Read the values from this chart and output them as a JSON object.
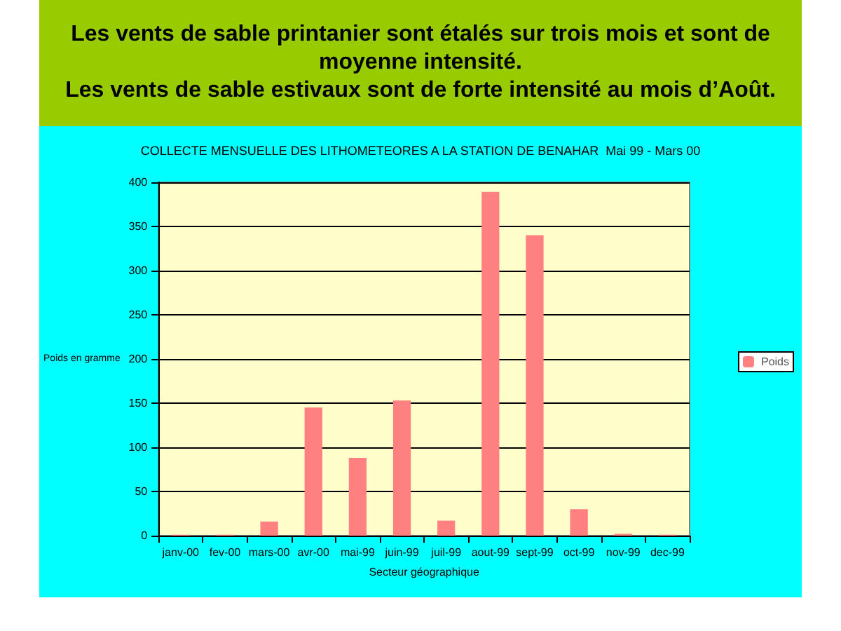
{
  "chart_data": {
    "type": "bar",
    "title": "Les vents de sable printanier sont étalés sur trois mois et sont de moyenne intensité.\nLes vents de sable estivaux sont de forte intensité au mois d’Août.",
    "subtitle": "COLLECTE MENSUELLE DES LITHOMETEORES A LA STATION DE BENAHAR  Mai 99 - Mars 00",
    "xlabel": "Secteur géographique",
    "ylabel": "Poids en gramme",
    "categories": [
      "janv-00",
      "fev-00",
      "mars-00",
      "avr-00",
      "mai-99",
      "juin-99",
      "juil-99",
      "aout-99",
      "sept-99",
      "oct-99",
      "nov-99",
      "dec-99"
    ],
    "series": [
      {
        "name": "Poids",
        "color": "#ff8080",
        "values": [
          1,
          1,
          16,
          145,
          88,
          153,
          17,
          389,
          340,
          30,
          2,
          1
        ]
      }
    ],
    "ylim": [
      0,
      400
    ],
    "yticks": [
      0,
      50,
      100,
      150,
      200,
      250,
      300,
      350,
      400
    ],
    "grid": "y",
    "legend": "right"
  }
}
